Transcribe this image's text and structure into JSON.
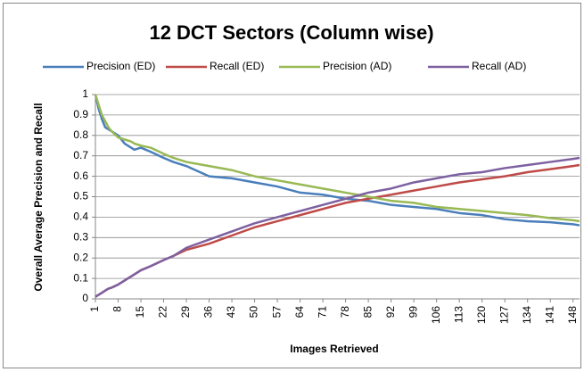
{
  "chart_data": {
    "type": "line",
    "title": "12 DCT Sectors (Column wise)",
    "x_label": "Images Retrieved",
    "y_label": "Overall Average Precision and Recall",
    "x": [
      1,
      2,
      3,
      4,
      5,
      6,
      8,
      10,
      12,
      13,
      15,
      18,
      22,
      25,
      29,
      36,
      43,
      50,
      57,
      64,
      71,
      78,
      85,
      92,
      99,
      106,
      113,
      120,
      127,
      134,
      141,
      148,
      150
    ],
    "series": [
      {
        "name": "Precision (ED)",
        "color": "#4a7ebb",
        "values": [
          1.0,
          0.93,
          0.88,
          0.84,
          0.83,
          0.82,
          0.8,
          0.76,
          0.74,
          0.73,
          0.74,
          0.72,
          0.69,
          0.67,
          0.65,
          0.6,
          0.59,
          0.57,
          0.55,
          0.52,
          0.51,
          0.49,
          0.48,
          0.46,
          0.45,
          0.44,
          0.42,
          0.41,
          0.39,
          0.38,
          0.375,
          0.365,
          0.36
        ]
      },
      {
        "name": "Recall (ED)",
        "color": "#be4b48",
        "values": [
          0.01,
          0.02,
          0.03,
          0.04,
          0.05,
          0.055,
          0.07,
          0.09,
          0.11,
          0.12,
          0.14,
          0.16,
          0.19,
          0.21,
          0.24,
          0.27,
          0.31,
          0.35,
          0.38,
          0.41,
          0.44,
          0.47,
          0.49,
          0.51,
          0.53,
          0.55,
          0.57,
          0.585,
          0.6,
          0.62,
          0.635,
          0.65,
          0.655
        ]
      },
      {
        "name": "Precision (AD)",
        "color": "#98b954",
        "values": [
          1.0,
          0.95,
          0.9,
          0.87,
          0.84,
          0.82,
          0.79,
          0.78,
          0.77,
          0.76,
          0.75,
          0.74,
          0.71,
          0.69,
          0.67,
          0.65,
          0.63,
          0.6,
          0.58,
          0.56,
          0.54,
          0.52,
          0.5,
          0.48,
          0.47,
          0.45,
          0.44,
          0.43,
          0.42,
          0.41,
          0.395,
          0.385,
          0.38
        ]
      },
      {
        "name": "Recall (AD)",
        "color": "#7d60a0",
        "values": [
          0.01,
          0.02,
          0.03,
          0.04,
          0.05,
          0.055,
          0.07,
          0.09,
          0.11,
          0.12,
          0.14,
          0.16,
          0.19,
          0.21,
          0.25,
          0.29,
          0.33,
          0.37,
          0.4,
          0.43,
          0.46,
          0.49,
          0.52,
          0.54,
          0.57,
          0.59,
          0.61,
          0.62,
          0.64,
          0.655,
          0.67,
          0.685,
          0.69
        ]
      }
    ],
    "xlim": [
      1,
      150
    ],
    "xticks": [
      1,
      8,
      15,
      22,
      29,
      36,
      43,
      50,
      57,
      64,
      71,
      78,
      85,
      92,
      99,
      106,
      113,
      120,
      127,
      134,
      141,
      148
    ],
    "ylim": [
      0,
      1
    ],
    "yticks": [
      0,
      0.1,
      0.2,
      0.3,
      0.4,
      0.5,
      0.6,
      0.7,
      0.8,
      0.9,
      1
    ],
    "grid": true,
    "legend": "top"
  }
}
